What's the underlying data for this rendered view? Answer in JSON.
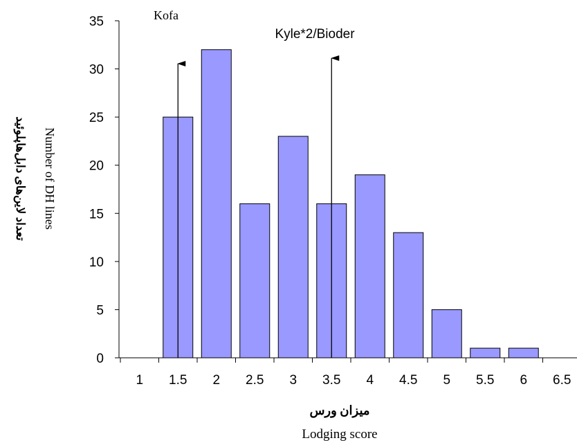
{
  "chart_data": {
    "type": "bar",
    "categories": [
      "1",
      "1.5",
      "2",
      "2.5",
      "3",
      "3.5",
      "4",
      "4.5",
      "5",
      "5.5",
      "6",
      "6.5"
    ],
    "values": [
      0,
      25,
      32,
      16,
      23,
      16,
      19,
      13,
      5,
      1,
      1,
      0
    ],
    "y_ticks": [
      "0",
      "5",
      "10",
      "15",
      "20",
      "25",
      "30",
      "35"
    ],
    "ylim": [
      0,
      35
    ],
    "grid": false,
    "legend": "none",
    "xlabel_fa": "میزان ورس",
    "xlabel": "Lodging score",
    "ylabel_fa": "تعداد لاین‌های دابل‌هاپلوئید",
    "ylabel": "Number of DH lines",
    "annotations": [
      {
        "text": "Kofa",
        "x": 1.5
      },
      {
        "text": "Kyle*2/Bioder",
        "x": 3.5
      }
    ],
    "colors": {
      "bar_fill": "#9999ff",
      "bar_stroke": "#000000"
    }
  }
}
